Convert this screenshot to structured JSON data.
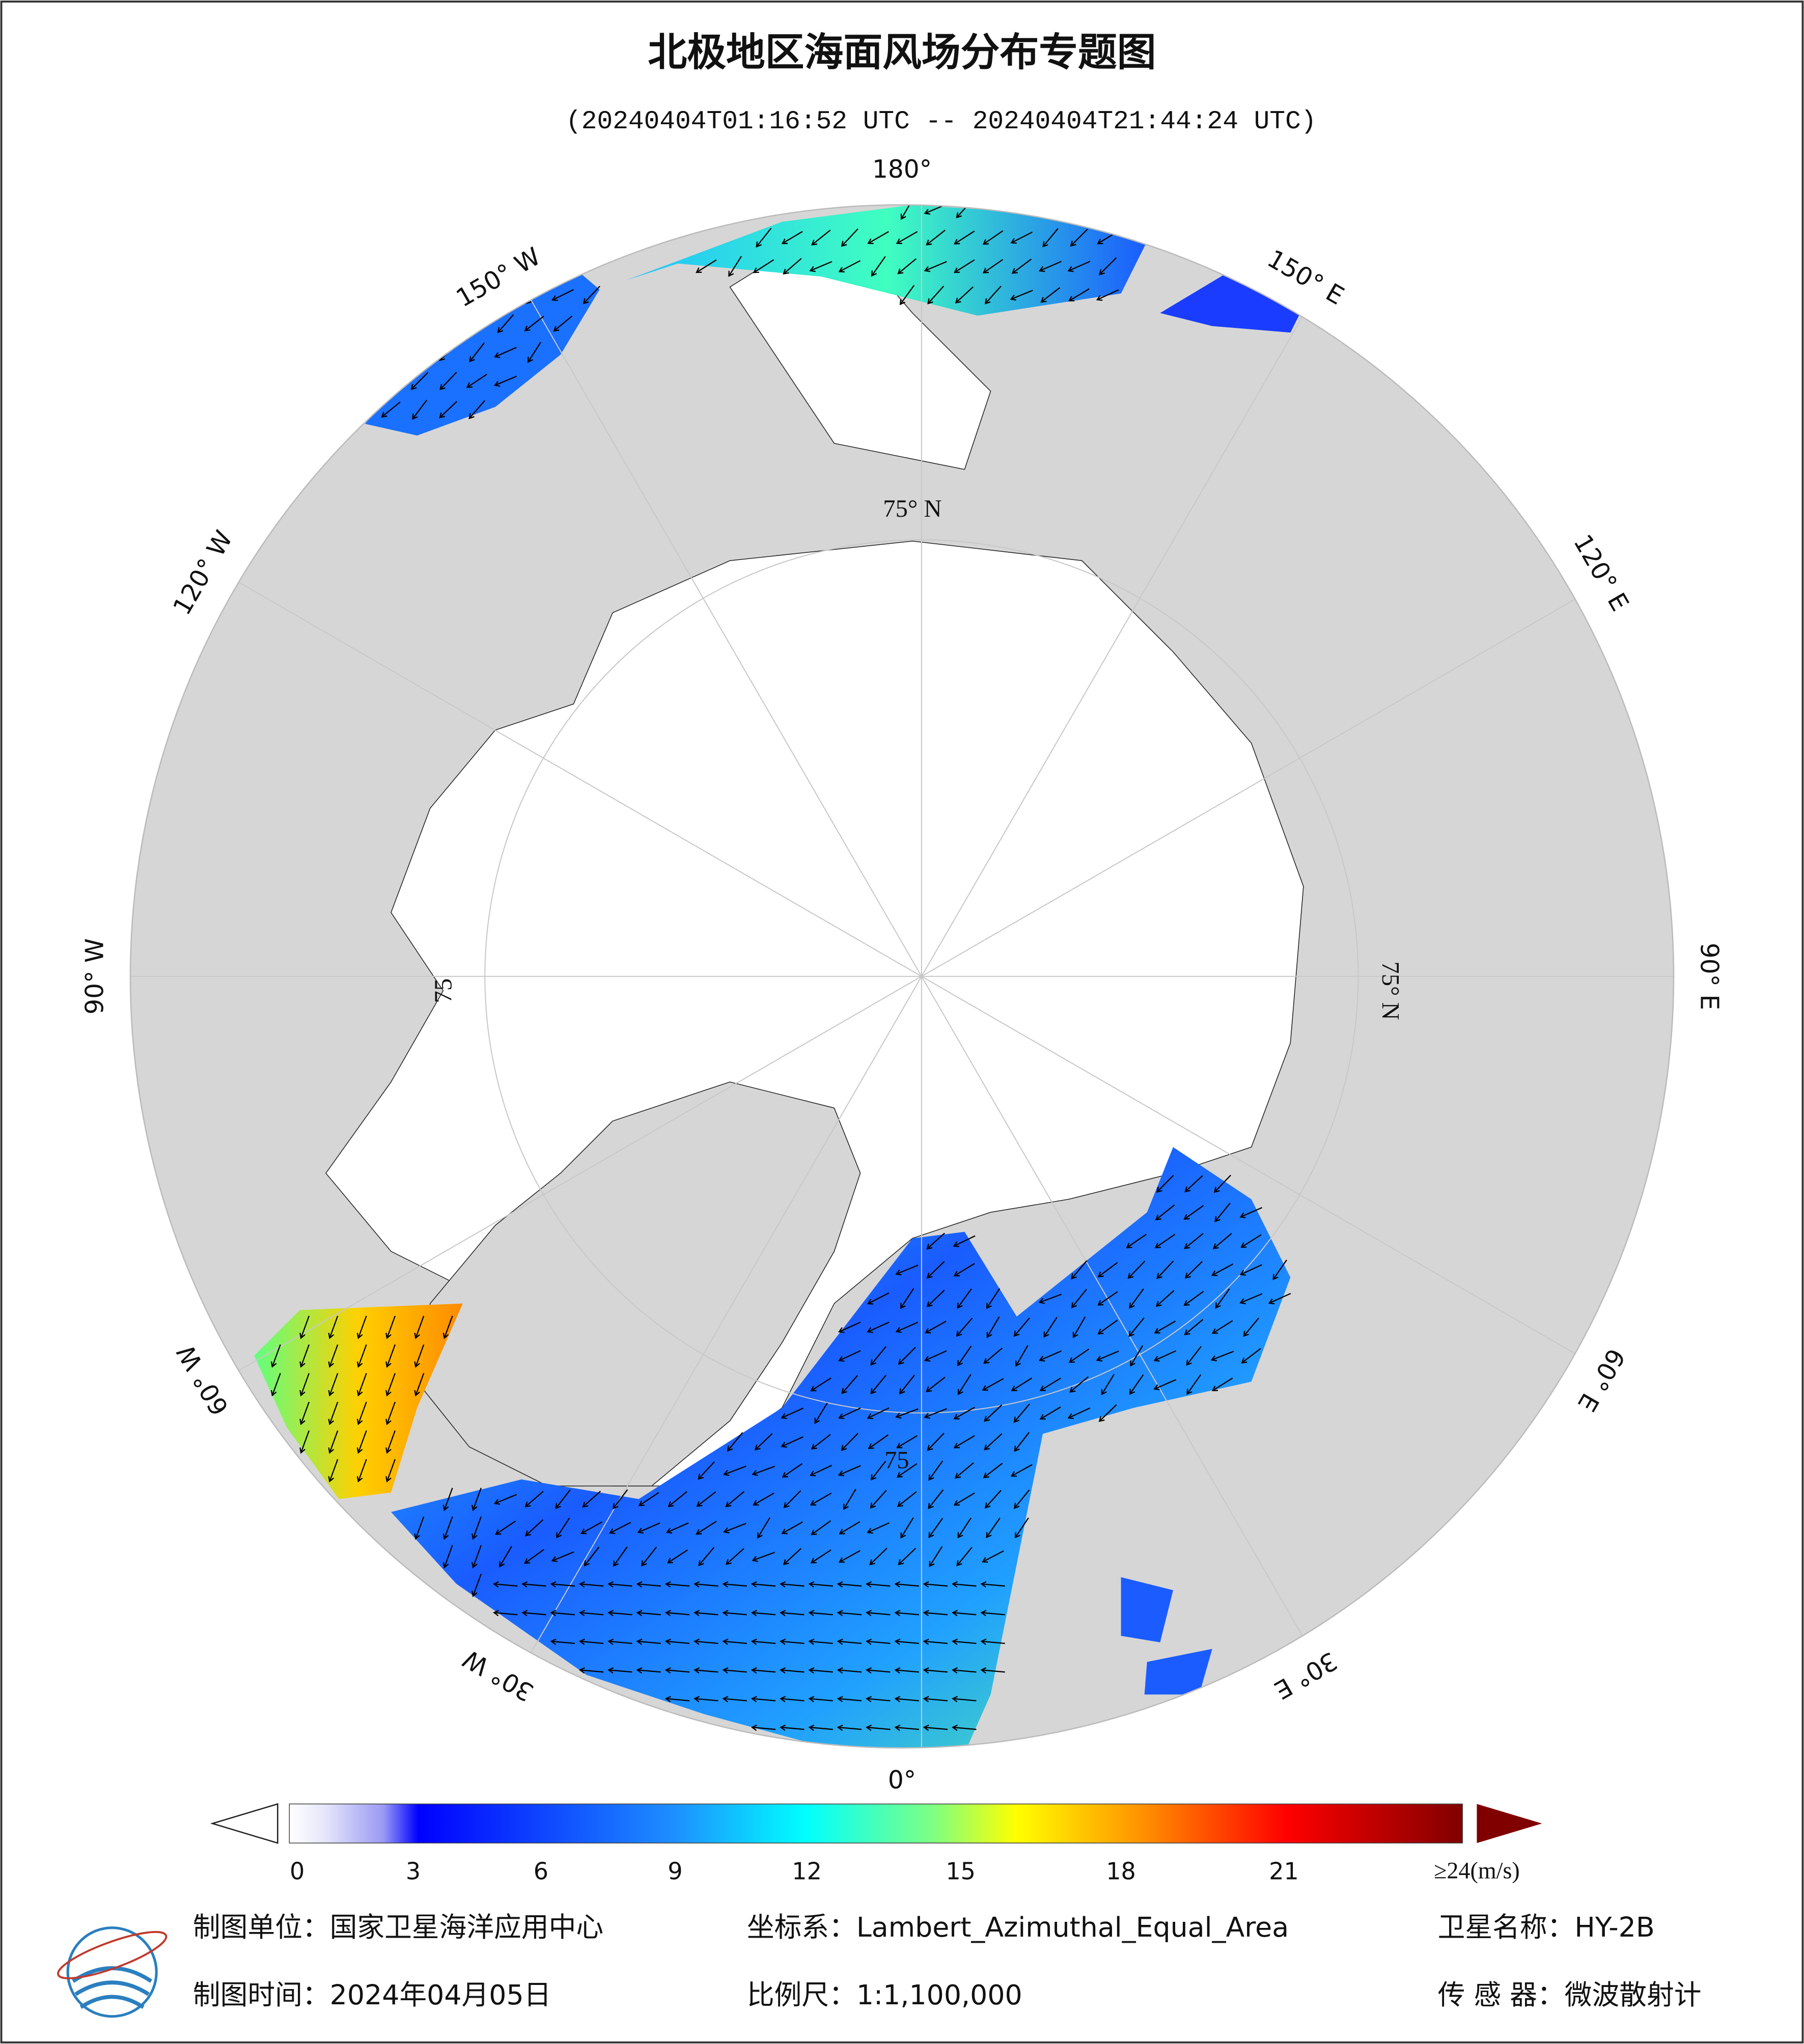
{
  "header": {
    "title": "北极地区海面风场分布专题图",
    "time_range": "(20240404T01:16:52 UTC -- 20240404T21:44:24 UTC)"
  },
  "map": {
    "longitude_labels": [
      "180°",
      "150° W",
      "120° W",
      "90° W",
      "60° W",
      "30° W",
      "0°",
      "30° E",
      "60° E",
      "90° E",
      "120° E",
      "150° E"
    ],
    "latitude_labels": [
      "75° N",
      "75° N",
      "75",
      "75"
    ]
  },
  "colorbar": {
    "ticks": [
      0,
      3,
      6,
      9,
      12,
      15,
      18,
      21
    ],
    "max_label": "≥24(m/s)"
  },
  "footer": {
    "unit": "制图单位：国家卫星海洋应用中心",
    "coordinate_system": "坐标系：Lambert_Azimuthal_Equal_Area",
    "satellite": "卫星名称：HY-2B",
    "date": "制图时间：2024年04月05日",
    "scale": "比例尺：1:1,100,000",
    "sensor": "传 感 器：微波散射计"
  }
}
